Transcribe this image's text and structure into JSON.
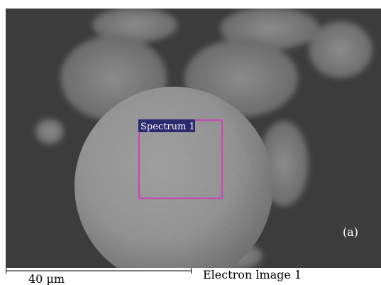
{
  "image": {
    "annotation": "Spectrum 1",
    "panel_label": "(a)"
  },
  "footer": {
    "scale_label": "40 µm",
    "caption": "Electron lmage 1"
  }
}
